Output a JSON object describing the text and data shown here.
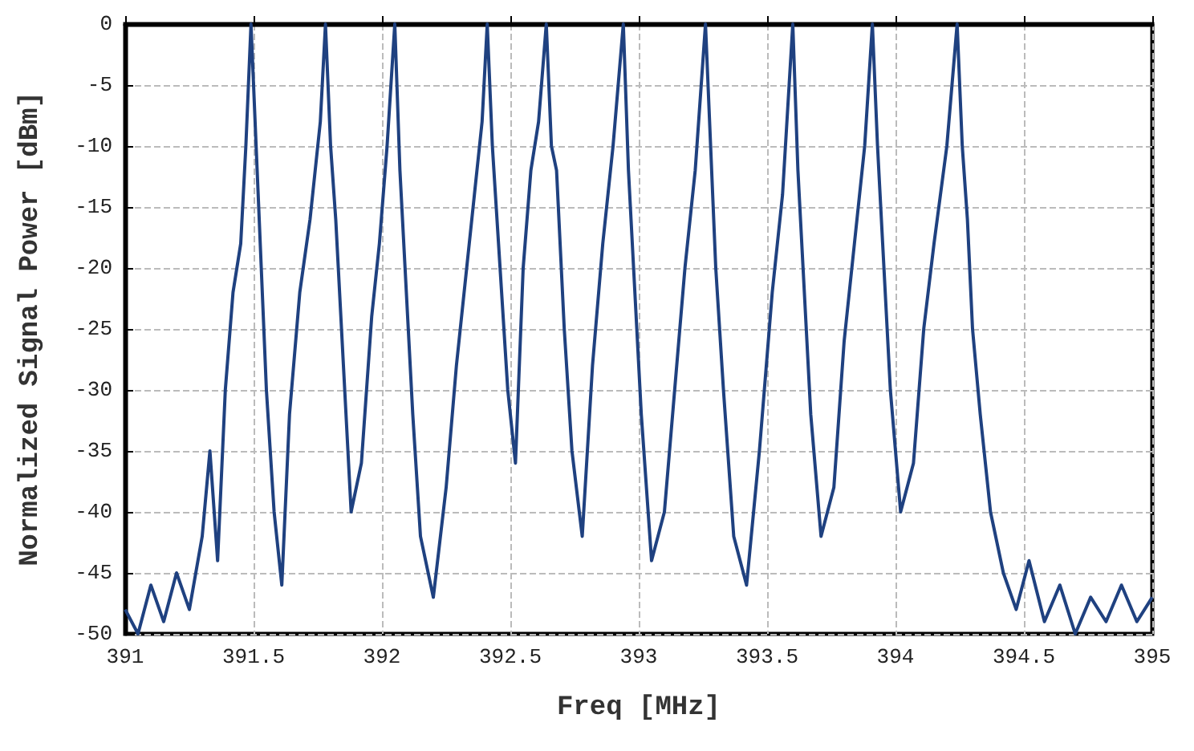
{
  "chart_data": {
    "type": "line",
    "xlabel": "Freq [MHz]",
    "ylabel": "Normalized Signal Power [dBm]",
    "xlim": [
      391,
      395
    ],
    "xticks": [
      391,
      391.5,
      392,
      392.5,
      393,
      393.5,
      394,
      394.5,
      395
    ],
    "ylim": [
      -50,
      0
    ],
    "yticks": [
      -50,
      -45,
      -40,
      -35,
      -30,
      -25,
      -20,
      -15,
      -10,
      -5,
      0
    ],
    "grid": true,
    "marker": "none",
    "line_style": "solid",
    "series": [
      {
        "color": "#1f4180",
        "x": [
          391.0,
          391.05,
          391.1,
          391.15,
          391.2,
          391.25,
          391.3,
          391.33,
          391.36,
          391.39,
          391.42,
          391.45,
          391.47,
          391.49,
          391.51,
          391.53,
          391.55,
          391.58,
          391.61,
          391.64,
          391.68,
          391.72,
          391.76,
          391.78,
          391.8,
          391.82,
          391.85,
          391.88,
          391.92,
          391.96,
          391.99,
          392.02,
          392.05,
          392.07,
          392.09,
          392.12,
          392.15,
          392.2,
          392.25,
          392.29,
          392.33,
          392.36,
          392.39,
          392.41,
          392.43,
          392.46,
          392.49,
          392.52,
          392.55,
          392.58,
          392.61,
          392.64,
          392.66,
          392.68,
          392.71,
          392.74,
          392.78,
          392.82,
          392.86,
          392.9,
          392.94,
          392.96,
          392.98,
          393.01,
          393.05,
          393.1,
          393.14,
          393.18,
          393.22,
          393.26,
          393.28,
          393.3,
          393.33,
          393.37,
          393.42,
          393.47,
          393.52,
          393.56,
          393.6,
          393.62,
          393.64,
          393.67,
          393.71,
          393.76,
          393.8,
          393.84,
          393.88,
          393.91,
          393.93,
          393.95,
          393.98,
          394.02,
          394.07,
          394.11,
          394.15,
          394.2,
          394.24,
          394.26,
          394.28,
          394.3,
          394.33,
          394.37,
          394.42,
          394.47,
          394.52,
          394.58,
          394.64,
          394.7,
          394.76,
          394.82,
          394.88,
          394.94,
          395.0
        ],
        "values": [
          -48,
          -50,
          -46,
          -49,
          -45,
          -48,
          -42,
          -35,
          -44,
          -30,
          -22,
          -18,
          -10,
          0,
          -10,
          -20,
          -30,
          -40,
          -46,
          -32,
          -22,
          -16,
          -8,
          0,
          -10,
          -16,
          -28,
          -40,
          -36,
          -24,
          -18,
          -10,
          0,
          -12,
          -20,
          -32,
          -42,
          -47,
          -38,
          -28,
          -20,
          -14,
          -8,
          0,
          -10,
          -20,
          -30,
          -36,
          -20,
          -12,
          -8,
          0,
          -10,
          -12,
          -25,
          -35,
          -42,
          -28,
          -18,
          -10,
          0,
          -12,
          -20,
          -32,
          -44,
          -40,
          -30,
          -20,
          -12,
          0,
          -10,
          -20,
          -30,
          -42,
          -46,
          -35,
          -22,
          -14,
          0,
          -12,
          -20,
          -32,
          -42,
          -38,
          -26,
          -18,
          -10,
          0,
          -10,
          -18,
          -30,
          -40,
          -36,
          -25,
          -18,
          -10,
          0,
          -10,
          -16,
          -25,
          -32,
          -40,
          -45,
          -48,
          -44,
          -49,
          -46,
          -50,
          -47,
          -49,
          -46,
          -49,
          -47
        ]
      }
    ]
  }
}
